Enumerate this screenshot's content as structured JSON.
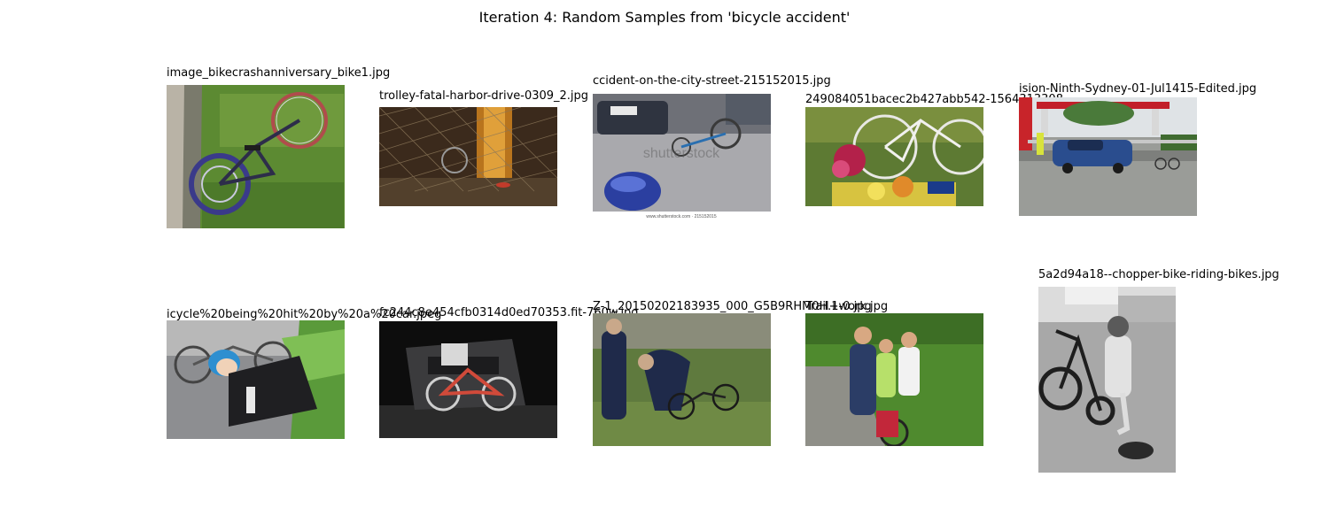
{
  "figure": {
    "title": "Iteration 4: Random Samples from 'bicycle accident'"
  },
  "samples": [
    {
      "caption": "image_bikecrashanniversary_bike1.jpg"
    },
    {
      "caption": "trolley-fatal-harbor-drive-0309_2.jpg"
    },
    {
      "caption": "ccident-on-the-city-street-215152015.jpg",
      "watermark": "shutterstock",
      "footer": "www.shutterstock.com · 215152015"
    },
    {
      "caption": "249084051bacec2b427abb542-1564313308"
    },
    {
      "caption": "ision-Ninth-Sydney-01-Jul1415-Edited.jpg"
    },
    {
      "caption": "icycle%20being%20hit%20by%20a%20car.jpeg"
    },
    {
      "caption": "fc244c8e454cfb0314d0ed70353.fit-760w.jpg"
    },
    {
      "caption": "Z-1_20150202183935_000_G5B9RHM0H.1-0.jpg"
    },
    {
      "caption": "Trail+work.jpg"
    },
    {
      "caption": "5a2d94a18--chopper-bike-riding-bikes.jpg"
    }
  ]
}
